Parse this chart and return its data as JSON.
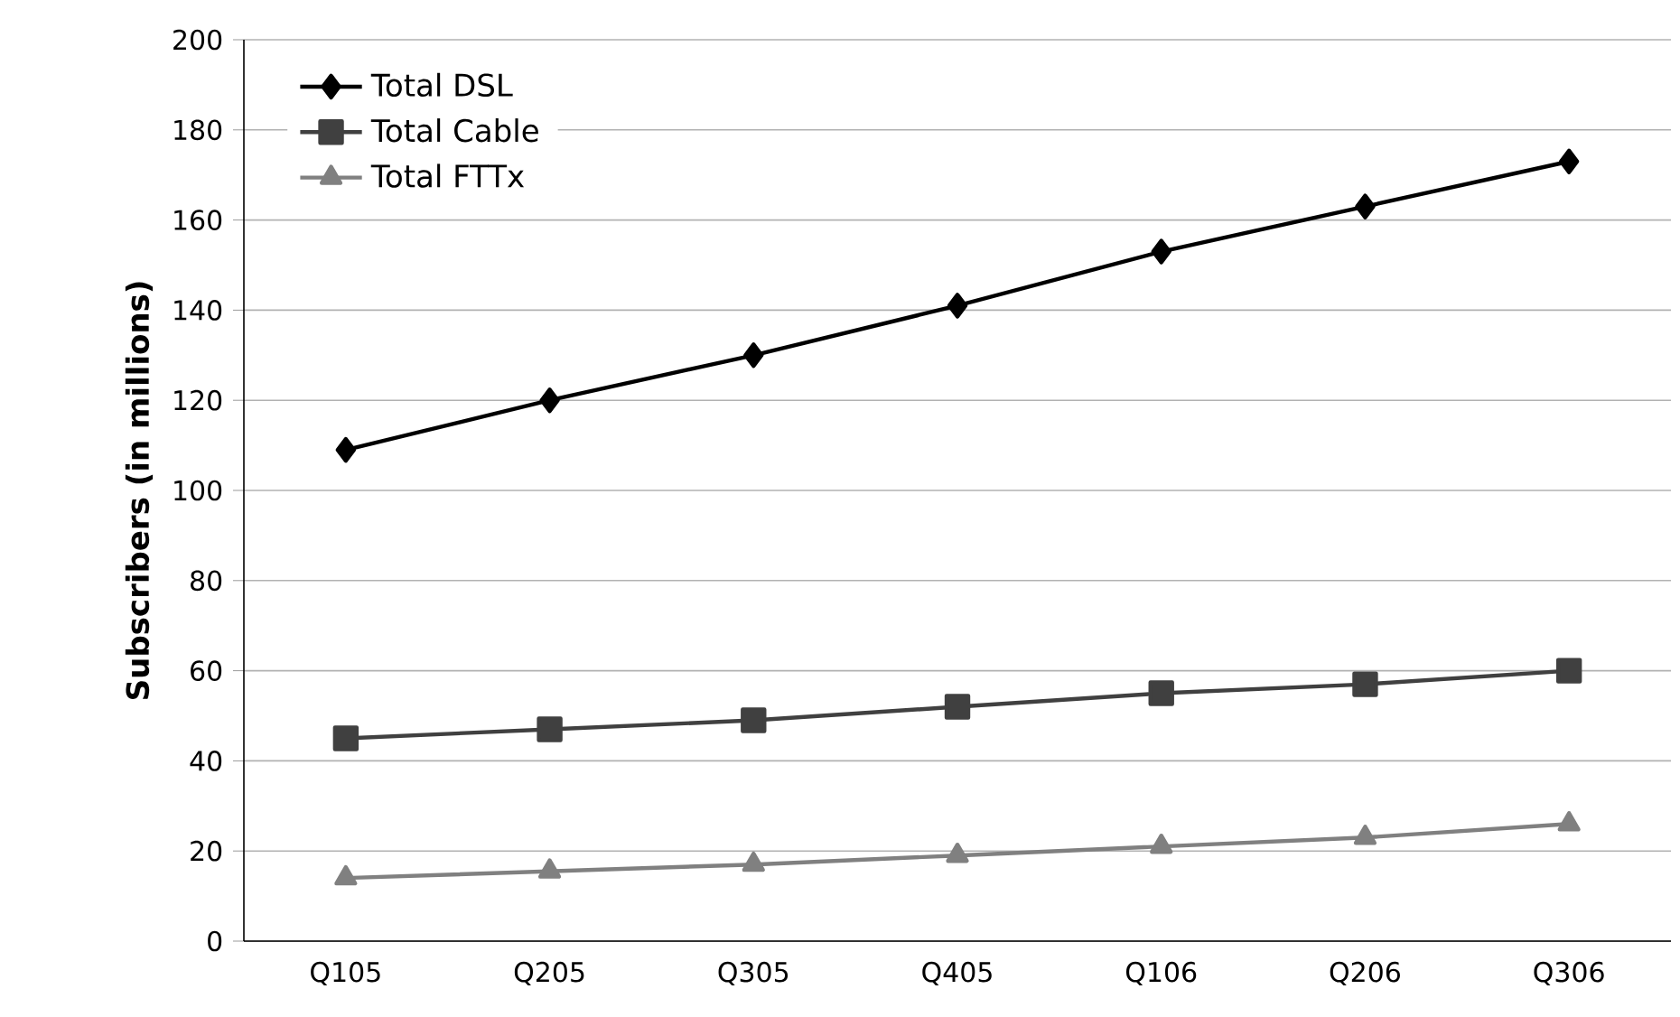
{
  "chart_data": {
    "type": "line",
    "ylabel": "Subscribers (in millions)",
    "categories": [
      "Q105",
      "Q205",
      "Q305",
      "Q405",
      "Q106",
      "Q206",
      "Q306"
    ],
    "series": [
      {
        "name": "Total DSL",
        "color": "#000000",
        "marker": "diamond",
        "values": [
          109,
          120,
          130,
          141,
          153,
          163,
          173
        ]
      },
      {
        "name": "Total Cable",
        "color": "#404040",
        "marker": "square",
        "values": [
          45,
          47,
          49,
          52,
          55,
          57,
          60
        ]
      },
      {
        "name": "Total FTTx",
        "color": "#808080",
        "marker": "triangle",
        "values": [
          14,
          15.5,
          17,
          19,
          21,
          23,
          26
        ]
      }
    ],
    "ylim": [
      0,
      200
    ],
    "yticks": [
      0,
      20,
      40,
      60,
      80,
      100,
      120,
      140,
      160,
      180,
      200
    ],
    "grid": "y",
    "legend": "top left",
    "line_style": "solid"
  }
}
